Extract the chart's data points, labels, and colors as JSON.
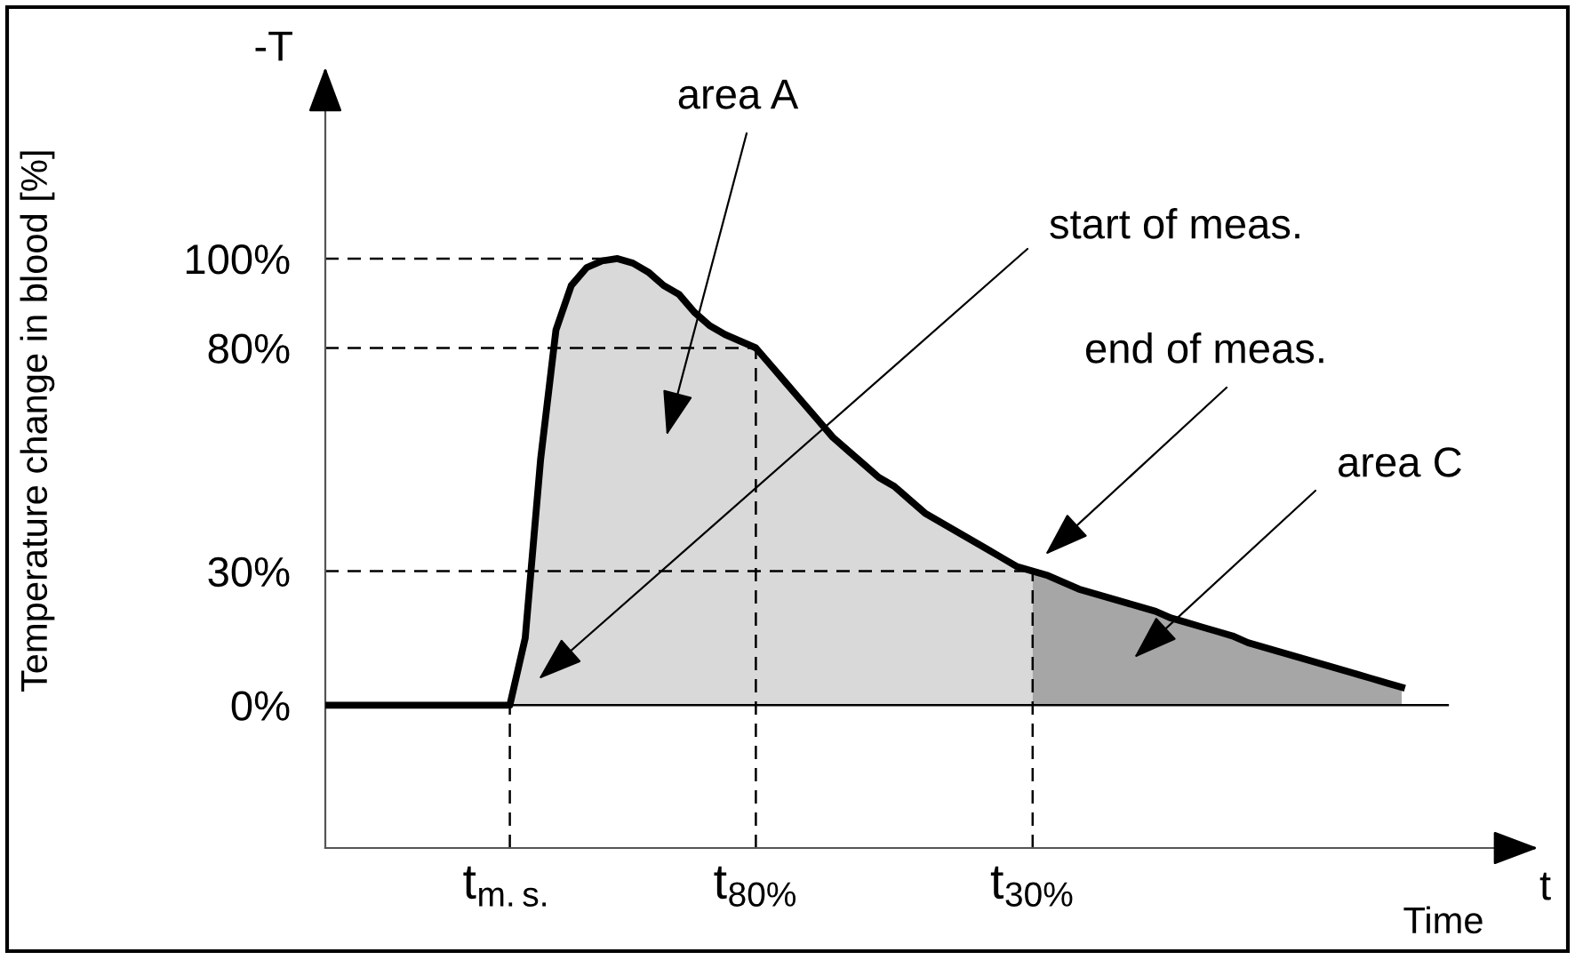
{
  "chart_data": {
    "type": "area",
    "ylabel": "Temperature change in blood [%]",
    "xlabel": "Time",
    "categories": [
      null,
      null,
      null,
      null,
      null,
      null,
      null,
      null,
      null,
      null,
      null,
      null,
      "t$_{m.s.}$",
      null,
      null,
      null,
      null,
      null,
      null,
      null,
      null,
      null,
      null,
      null,
      null,
      null,
      null,
      null,
      "t$_{80%}$",
      null,
      null,
      null,
      null,
      null,
      null,
      null,
      null,
      null,
      null,
      null,
      null,
      null,
      null,
      null,
      null,
      null,
      "t$_{30%}$",
      null,
      null,
      null,
      null,
      null,
      null,
      null,
      null,
      null,
      null,
      null,
      null,
      null,
      null,
      null,
      null,
      null,
      null,
      null,
      null,
      null,
      null,
      null,
      null
    ],
    "series": [
      {
        "color": "#d9d9d9",
        "values": [
          null,
          null,
          null,
          null,
          null,
          null,
          null,
          null,
          null,
          null,
          null,
          null,
          0,
          15,
          55,
          84,
          94,
          98,
          99.5,
          100,
          99,
          97,
          94,
          92,
          88,
          85,
          83,
          81.5,
          80,
          76,
          72,
          68,
          64,
          60,
          57,
          54,
          51,
          49,
          46,
          43,
          41,
          39,
          37,
          35,
          33,
          31,
          30,
          null,
          null,
          null,
          null,
          null,
          null,
          null,
          null,
          null,
          null,
          null,
          null,
          null,
          null,
          null,
          null,
          null,
          null,
          null,
          null,
          null,
          null,
          null,
          null
        ]
      },
      {
        "color": "#a6a6a6",
        "values": [
          null,
          null,
          null,
          null,
          null,
          null,
          null,
          null,
          null,
          null,
          null,
          null,
          null,
          null,
          null,
          null,
          null,
          null,
          null,
          null,
          null,
          null,
          null,
          null,
          null,
          null,
          null,
          null,
          null,
          null,
          null,
          null,
          null,
          null,
          null,
          null,
          null,
          null,
          null,
          null,
          null,
          null,
          null,
          null,
          null,
          null,
          30,
          29,
          27.5,
          26,
          25,
          24,
          23,
          22,
          21,
          19.5,
          18.5,
          17.5,
          16.5,
          15.5,
          14,
          13,
          12,
          11,
          10,
          9,
          8,
          7,
          6,
          5,
          4
        ]
      },
      {
        "type": "line",
        "color": "#000000",
        "values": [
          0,
          0,
          0,
          0,
          0,
          0,
          0,
          0,
          0,
          0,
          0,
          0,
          0,
          15,
          55,
          84,
          94,
          98,
          99.5,
          100,
          99,
          97,
          94,
          92,
          88,
          85,
          83,
          81.5,
          80,
          76,
          72,
          68,
          64,
          60,
          57,
          54,
          51,
          49,
          46,
          43,
          41,
          39,
          37,
          35,
          33,
          31,
          30,
          29,
          27.5,
          26,
          25,
          24,
          23,
          22,
          21,
          19.5,
          18.5,
          17.5,
          16.5,
          15.5,
          14,
          13,
          12,
          11,
          10,
          9,
          8,
          7,
          6,
          5,
          4
        ]
      }
    ],
    "ylim": [
      -32,
      142
    ],
    "yticks": [
      {
        "value": 0,
        "label": "0%"
      },
      {
        "value": 30,
        "label": "30%"
      },
      {
        "value": 80,
        "label": "80%"
      },
      {
        "value": 100,
        "label": "100%"
      }
    ],
    "ref_lines": [
      {
        "axis": "y",
        "value": 0,
        "line_style": "solid"
      },
      {
        "axis": "y",
        "value": 30,
        "line_style": "dashed"
      },
      {
        "axis": "y",
        "value": 80,
        "line_style": "dashed"
      },
      {
        "axis": "y",
        "value": 100,
        "line_style": "dashed"
      },
      {
        "axis": "x",
        "value": "t$_{m.s.}$",
        "line_style": "dashed"
      },
      {
        "axis": "x",
        "value": "t$_{80%}$",
        "line_style": "dashed"
      },
      {
        "axis": "x",
        "value": "t$_{30%}$",
        "line_style": "dashed"
      }
    ],
    "annotations": [
      "-T",
      "t",
      "area A",
      "start of meas.",
      "end of meas.",
      "area C"
    ]
  }
}
